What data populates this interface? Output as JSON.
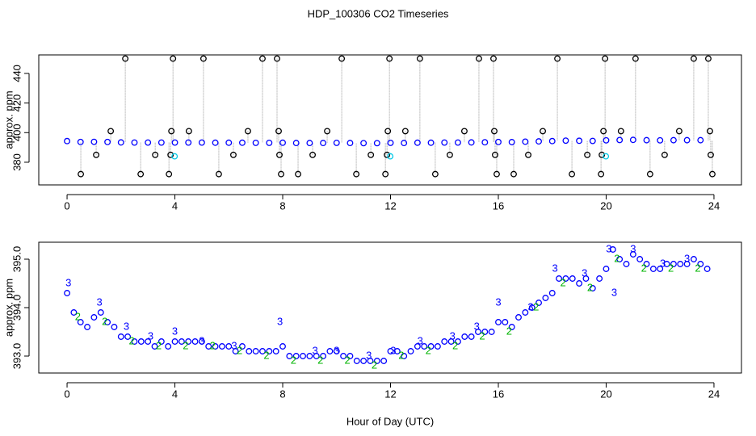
{
  "chart_data": [
    {
      "type": "scatter",
      "title": "HDP_100306  CO2 Timeseries",
      "ylabel": "approx. ppm",
      "xlim": [
        -1.05,
        25.02
      ],
      "ylim": [
        364.7,
        452.5
      ],
      "xticks": [
        0,
        4,
        8,
        12,
        16,
        20,
        24
      ],
      "yticks": [
        380,
        400,
        420,
        440
      ],
      "series": [
        {
          "color": "#0000ff",
          "marker": "circle",
          "x": [
            0,
            0.5,
            1,
            1.5,
            2,
            2.5,
            3,
            3.5,
            4,
            4.5,
            5,
            5.5,
            6,
            6.5,
            7,
            7.5,
            8,
            8.5,
            9,
            9.5,
            10,
            10.5,
            11,
            11.5,
            12,
            12.5,
            13,
            13.5,
            14,
            14.5,
            15,
            15.5,
            16,
            16.5,
            17,
            17.5,
            18,
            18.5,
            19,
            19.5,
            20,
            20.5,
            21,
            21.5,
            22,
            22.5,
            23,
            23.5
          ],
          "values": [
            394.3,
            393.7,
            393.8,
            393.7,
            393.4,
            393.3,
            393.3,
            393.3,
            393.3,
            393.3,
            393.3,
            393.2,
            393.2,
            393.2,
            393.1,
            393.1,
            393.2,
            393.0,
            393.0,
            393.0,
            393.1,
            393.0,
            392.9,
            392.9,
            393.1,
            393.0,
            393.2,
            393.2,
            393.3,
            393.3,
            393.4,
            393.5,
            393.7,
            393.6,
            393.9,
            394.1,
            394.3,
            394.6,
            394.5,
            394.4,
            394.8,
            395.0,
            395.1,
            394.9,
            394.8,
            394.9,
            394.9,
            394.9
          ]
        },
        {
          "color": "#000000",
          "marker": "circle",
          "drop_lines": true,
          "x": [
            0.51,
            1.08,
            1.62,
            2.16,
            2.73,
            3.27,
            3.78,
            3.84,
            3.87,
            3.93,
            4.52,
            5.06,
            5.63,
            6.17,
            6.71,
            7.25,
            7.79,
            7.85,
            7.88,
            7.94,
            8.57,
            9.11,
            9.65,
            10.19,
            10.73,
            11.27,
            11.81,
            11.87,
            11.9,
            11.96,
            12.55,
            13.09,
            13.66,
            14.2,
            14.74,
            15.28,
            15.82,
            15.85,
            15.88,
            15.94,
            16.57,
            17.11,
            17.65,
            18.19,
            18.73,
            19.3,
            19.81,
            19.84,
            19.9,
            19.96,
            20.55,
            21.09,
            21.63,
            22.17,
            22.71,
            23.25,
            23.79,
            23.85,
            23.88,
            23.94
          ],
          "values": [
            372,
            385,
            401,
            450,
            372,
            385,
            372,
            385,
            401,
            450,
            401,
            450,
            372,
            385,
            401,
            450,
            450,
            401,
            385,
            372,
            372,
            385,
            401,
            450,
            372,
            385,
            372,
            385,
            401,
            450,
            401,
            450,
            372,
            385,
            401,
            450,
            450,
            401,
            385,
            372,
            372,
            385,
            401,
            450,
            372,
            385,
            372,
            385,
            401,
            450,
            401,
            450,
            372,
            385,
            401,
            450,
            450,
            401,
            385,
            372
          ]
        },
        {
          "color": "#00c8e6",
          "marker": "circle",
          "x": [
            3.99,
            11.99,
            19.99
          ],
          "values": [
            384,
            384,
            384
          ]
        }
      ]
    },
    {
      "type": "scatter",
      "ylabel": "approx. ppm",
      "xlabel": "Hour of Day (UTC)",
      "xlim": [
        -1.05,
        25.02
      ],
      "ylim": [
        392.65,
        395.35
      ],
      "xticks": [
        0,
        4,
        8,
        12,
        16,
        20,
        24
      ],
      "yticks": [
        {
          "value": 393,
          "label": "393.0"
        },
        {
          "value": 394,
          "label": "394.0"
        },
        {
          "value": 395,
          "label": "395.0"
        }
      ],
      "series": [
        {
          "color": "#0000ff",
          "marker": "circle",
          "x": [
            0,
            0.25,
            0.5,
            0.75,
            1,
            1.25,
            1.5,
            1.75,
            2,
            2.25,
            2.5,
            2.75,
            3,
            3.25,
            3.5,
            3.75,
            4,
            4.25,
            4.5,
            4.75,
            5,
            5.25,
            5.5,
            5.75,
            6,
            6.25,
            6.5,
            6.75,
            7,
            7.25,
            7.5,
            7.75,
            8,
            8.25,
            8.5,
            8.75,
            9,
            9.25,
            9.5,
            9.75,
            10,
            10.25,
            10.5,
            10.75,
            11,
            11.25,
            11.5,
            11.75,
            12,
            12.25,
            12.5,
            12.75,
            13,
            13.25,
            13.5,
            13.75,
            14,
            14.25,
            14.5,
            14.75,
            15,
            15.25,
            15.5,
            15.75,
            16,
            16.25,
            16.5,
            16.75,
            17,
            17.25,
            17.5,
            17.75,
            18,
            18.25,
            18.5,
            18.75,
            19,
            19.25,
            19.5,
            19.75,
            20,
            20.25,
            20.5,
            20.75,
            21,
            21.25,
            21.5,
            21.75,
            22,
            22.25,
            22.5,
            22.75,
            23,
            23.25,
            23.5,
            23.75
          ],
          "values": [
            394.3,
            393.9,
            393.7,
            393.6,
            393.8,
            393.9,
            393.7,
            393.6,
            393.4,
            393.4,
            393.3,
            393.3,
            393.3,
            393.2,
            393.3,
            393.2,
            393.3,
            393.3,
            393.3,
            393.3,
            393.3,
            393.2,
            393.2,
            393.2,
            393.2,
            393.1,
            393.2,
            393.1,
            393.1,
            393.1,
            393.1,
            393.1,
            393.2,
            393.0,
            393.0,
            393.0,
            393.0,
            393.0,
            393.0,
            393.1,
            393.1,
            393.0,
            393.0,
            392.9,
            392.9,
            392.9,
            392.9,
            392.9,
            393.1,
            393.1,
            393.0,
            393.1,
            393.2,
            393.2,
            393.2,
            393.2,
            393.3,
            393.3,
            393.3,
            393.4,
            393.4,
            393.5,
            393.5,
            393.5,
            393.7,
            393.7,
            393.6,
            393.8,
            393.9,
            394.0,
            394.1,
            394.2,
            394.3,
            394.6,
            394.6,
            394.6,
            394.5,
            394.6,
            394.4,
            394.6,
            394.8,
            395.2,
            395.0,
            394.9,
            395.1,
            395.0,
            394.9,
            394.8,
            394.8,
            394.9,
            394.9,
            394.9,
            394.9,
            395.0,
            394.9,
            394.8
          ]
        },
        {
          "color": "#00b400",
          "marker": "2",
          "x": [
            0.4,
            1.4,
            2.4,
            3.4,
            4.4,
            5.4,
            6.4,
            7.4,
            8.4,
            9.4,
            10.4,
            11.4,
            12.4,
            13.4,
            14.4,
            15.4,
            16.4,
            17.4,
            18.4,
            19.4,
            20.4,
            21.4,
            22.4,
            23.4
          ],
          "values": [
            393.8,
            393.7,
            393.3,
            393.2,
            393.2,
            393.2,
            393.1,
            393.0,
            392.9,
            392.9,
            392.9,
            392.8,
            393.0,
            393.1,
            393.2,
            393.4,
            393.5,
            394.0,
            394.5,
            394.4,
            395.0,
            394.8,
            394.8,
            394.8
          ]
        },
        {
          "color": "#0000ff",
          "marker": "3",
          "x": [
            0.05,
            1.2,
            2.2,
            3.1,
            4.0,
            5.0,
            6.2,
            7.9,
            9.2,
            10.0,
            11.2,
            12.1,
            13.1,
            14.3,
            15.2,
            16.0,
            17.2,
            18.1,
            19.2,
            20.1,
            20.3,
            21.0,
            22.1,
            23.0
          ],
          "values": [
            394.5,
            394.1,
            393.6,
            393.4,
            393.5,
            393.3,
            393.2,
            393.7,
            393.1,
            393.1,
            393.0,
            393.1,
            393.3,
            393.4,
            393.6,
            394.1,
            394.0,
            394.8,
            394.7,
            395.2,
            394.3,
            395.2,
            394.9,
            395.0
          ]
        }
      ]
    }
  ]
}
